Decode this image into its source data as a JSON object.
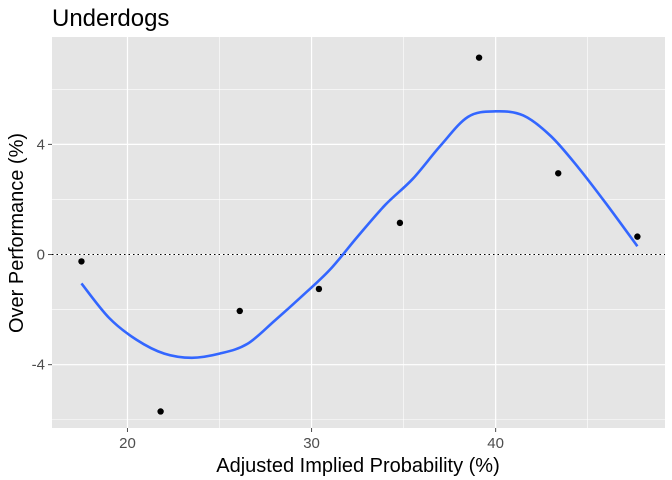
{
  "chart_data": {
    "type": "scatter",
    "title": "Underdogs",
    "xlabel": "Adjusted Implied Probability (%)",
    "ylabel": "Over Performance (%)",
    "xlim": [
      15.9,
      49.2
    ],
    "ylim": [
      -6.3,
      7.9
    ],
    "xticks": [
      20,
      30,
      40
    ],
    "xtick_labels": [
      "20",
      "30",
      "40"
    ],
    "xminor": [
      25,
      35,
      45
    ],
    "yticks": [
      -4,
      0,
      4
    ],
    "ytick_labels": [
      "-4",
      "0",
      "4"
    ],
    "yminor": [
      -6,
      -2,
      2,
      6
    ],
    "grid": true,
    "hline": {
      "y": 0,
      "style": "dotted"
    },
    "points": [
      {
        "x": 17.5,
        "y": -0.25
      },
      {
        "x": 21.8,
        "y": -5.7
      },
      {
        "x": 26.1,
        "y": -2.05
      },
      {
        "x": 30.4,
        "y": -1.25
      },
      {
        "x": 34.8,
        "y": 1.15
      },
      {
        "x": 39.1,
        "y": 7.15
      },
      {
        "x": 43.4,
        "y": 2.95
      },
      {
        "x": 47.7,
        "y": 0.65
      }
    ],
    "smooth": {
      "x": [
        17.5,
        19,
        20.5,
        22,
        23.5,
        25,
        26.5,
        28,
        29.5,
        31,
        32.5,
        34,
        35.5,
        37,
        38.5,
        40,
        41.5,
        43,
        44.5,
        46,
        47.7
      ],
      "y": [
        -1.05,
        -2.3,
        -3.1,
        -3.6,
        -3.75,
        -3.6,
        -3.25,
        -2.4,
        -1.5,
        -0.55,
        0.65,
        1.8,
        2.75,
        3.95,
        5.0,
        5.2,
        5.05,
        4.3,
        3.15,
        1.85,
        0.3
      ]
    },
    "colors": {
      "panel": "#e5e5e5",
      "grid": "#ffffff",
      "points": "#000000",
      "smooth": "#3366ff",
      "ticks": "#4d4d4d"
    }
  }
}
